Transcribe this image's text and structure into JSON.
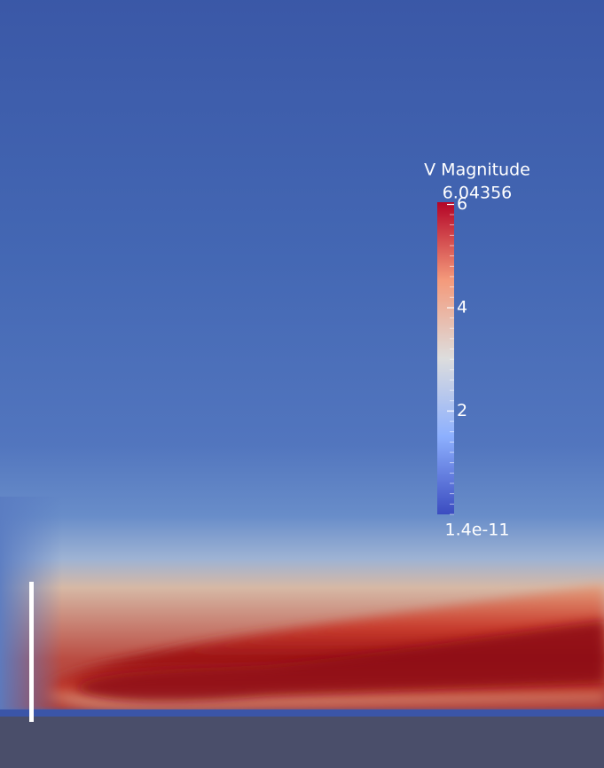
{
  "colorbar": {
    "title": "V Magnitude",
    "range": [
      1.4e-11,
      6.04356
    ],
    "ticks": [
      2,
      4,
      6
    ]
  }
}
